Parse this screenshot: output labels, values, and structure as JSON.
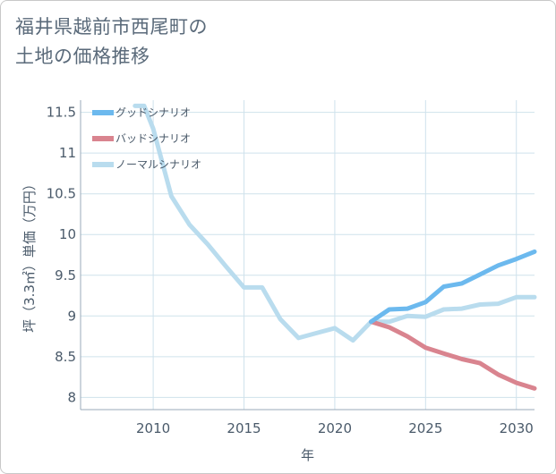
{
  "title_lines": [
    "福井県越前市西尾町の",
    "土地の価格推移"
  ],
  "colors": {
    "good": "#6cb9ee",
    "bad": "#d9848f",
    "normal": "#b9dcee",
    "grid": "#cfe2ec",
    "axis": "#9aaab8"
  },
  "chart_data": {
    "type": "line",
    "xlabel": "年",
    "ylabel": "坪（3.3㎡）単価（万円）",
    "xlim": [
      2006,
      2031
    ],
    "ylim": [
      7.85,
      11.65
    ],
    "x_ticks": [
      "2010",
      "2015",
      "2020",
      "2025",
      "2030"
    ],
    "y_ticks": [
      "8",
      "8.5",
      "9",
      "9.5",
      "10",
      "10.5",
      "11",
      "11.5"
    ],
    "grid": true,
    "legend_position": "top-left",
    "series": [
      {
        "name": "グッドシナリオ",
        "color_key": "good",
        "x": [
          2022,
          2023,
          2024,
          2025,
          2026,
          2027,
          2028,
          2029,
          2030,
          2031
        ],
        "y": [
          8.93,
          9.08,
          9.09,
          9.17,
          9.36,
          9.4,
          9.51,
          9.62,
          9.7,
          9.79
        ]
      },
      {
        "name": "バッドシナリオ",
        "color_key": "bad",
        "x": [
          2022,
          2023,
          2024,
          2025,
          2026,
          2027,
          2028,
          2029,
          2030,
          2031
        ],
        "y": [
          8.93,
          8.86,
          8.75,
          8.61,
          8.54,
          8.47,
          8.42,
          8.28,
          8.18,
          8.11
        ]
      },
      {
        "name": "ノーマルシナリオ",
        "color_key": "normal",
        "x": [
          2009,
          2009.5,
          2010,
          2011,
          2012,
          2013,
          2014,
          2015,
          2016,
          2017,
          2018,
          2019,
          2020,
          2021,
          2022,
          2023,
          2024,
          2025,
          2026,
          2027,
          2028,
          2029,
          2030,
          2031
        ],
        "y": [
          11.58,
          11.58,
          11.3,
          10.47,
          10.12,
          9.88,
          9.61,
          9.35,
          9.35,
          8.96,
          8.73,
          8.79,
          8.85,
          8.7,
          8.93,
          8.93,
          9.0,
          8.99,
          9.08,
          9.09,
          9.14,
          9.15,
          9.23,
          9.23
        ]
      }
    ]
  }
}
